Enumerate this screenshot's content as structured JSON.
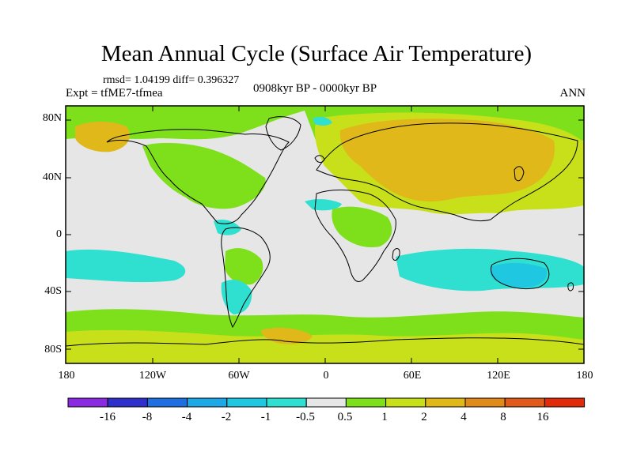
{
  "map": {
    "title": "Mean Annual Cycle (Surface Air Temperature)",
    "stats": "rmsd= 1.04199 diff= 0.396327",
    "experiment": "Expt = tfME7-tfmea",
    "period": "0908kyr BP - 0000kyr BP",
    "season": "ANN",
    "lat_labels": [
      "80N",
      "40N",
      "0",
      "40S",
      "80S"
    ],
    "lon_labels": [
      "180",
      "120W",
      "60W",
      "0",
      "60E",
      "120E",
      "180"
    ]
  },
  "colorbar": {
    "labels": [
      "-16",
      "-8",
      "-4",
      "-2",
      "-1",
      "-0.5",
      "0.5",
      "1",
      "2",
      "4",
      "8",
      "16"
    ],
    "colors": [
      "#8a2be2",
      "#2f2fcc",
      "#1f6fe0",
      "#1fa8e8",
      "#1fc8e0",
      "#2fe0d0",
      "#e6e6e6",
      "#7ee01a",
      "#c8e01a",
      "#e0b81a",
      "#e08a1a",
      "#e05a1a",
      "#e02a0a"
    ]
  },
  "fills": {
    "background": "#e6e6e6",
    "warm_weak": "#7ee01a",
    "warm_mid": "#c8e01a",
    "warm_strong": "#e0b81a",
    "cool_weak": "#2fe0d0",
    "cool_mid": "#1fc8e0"
  }
}
